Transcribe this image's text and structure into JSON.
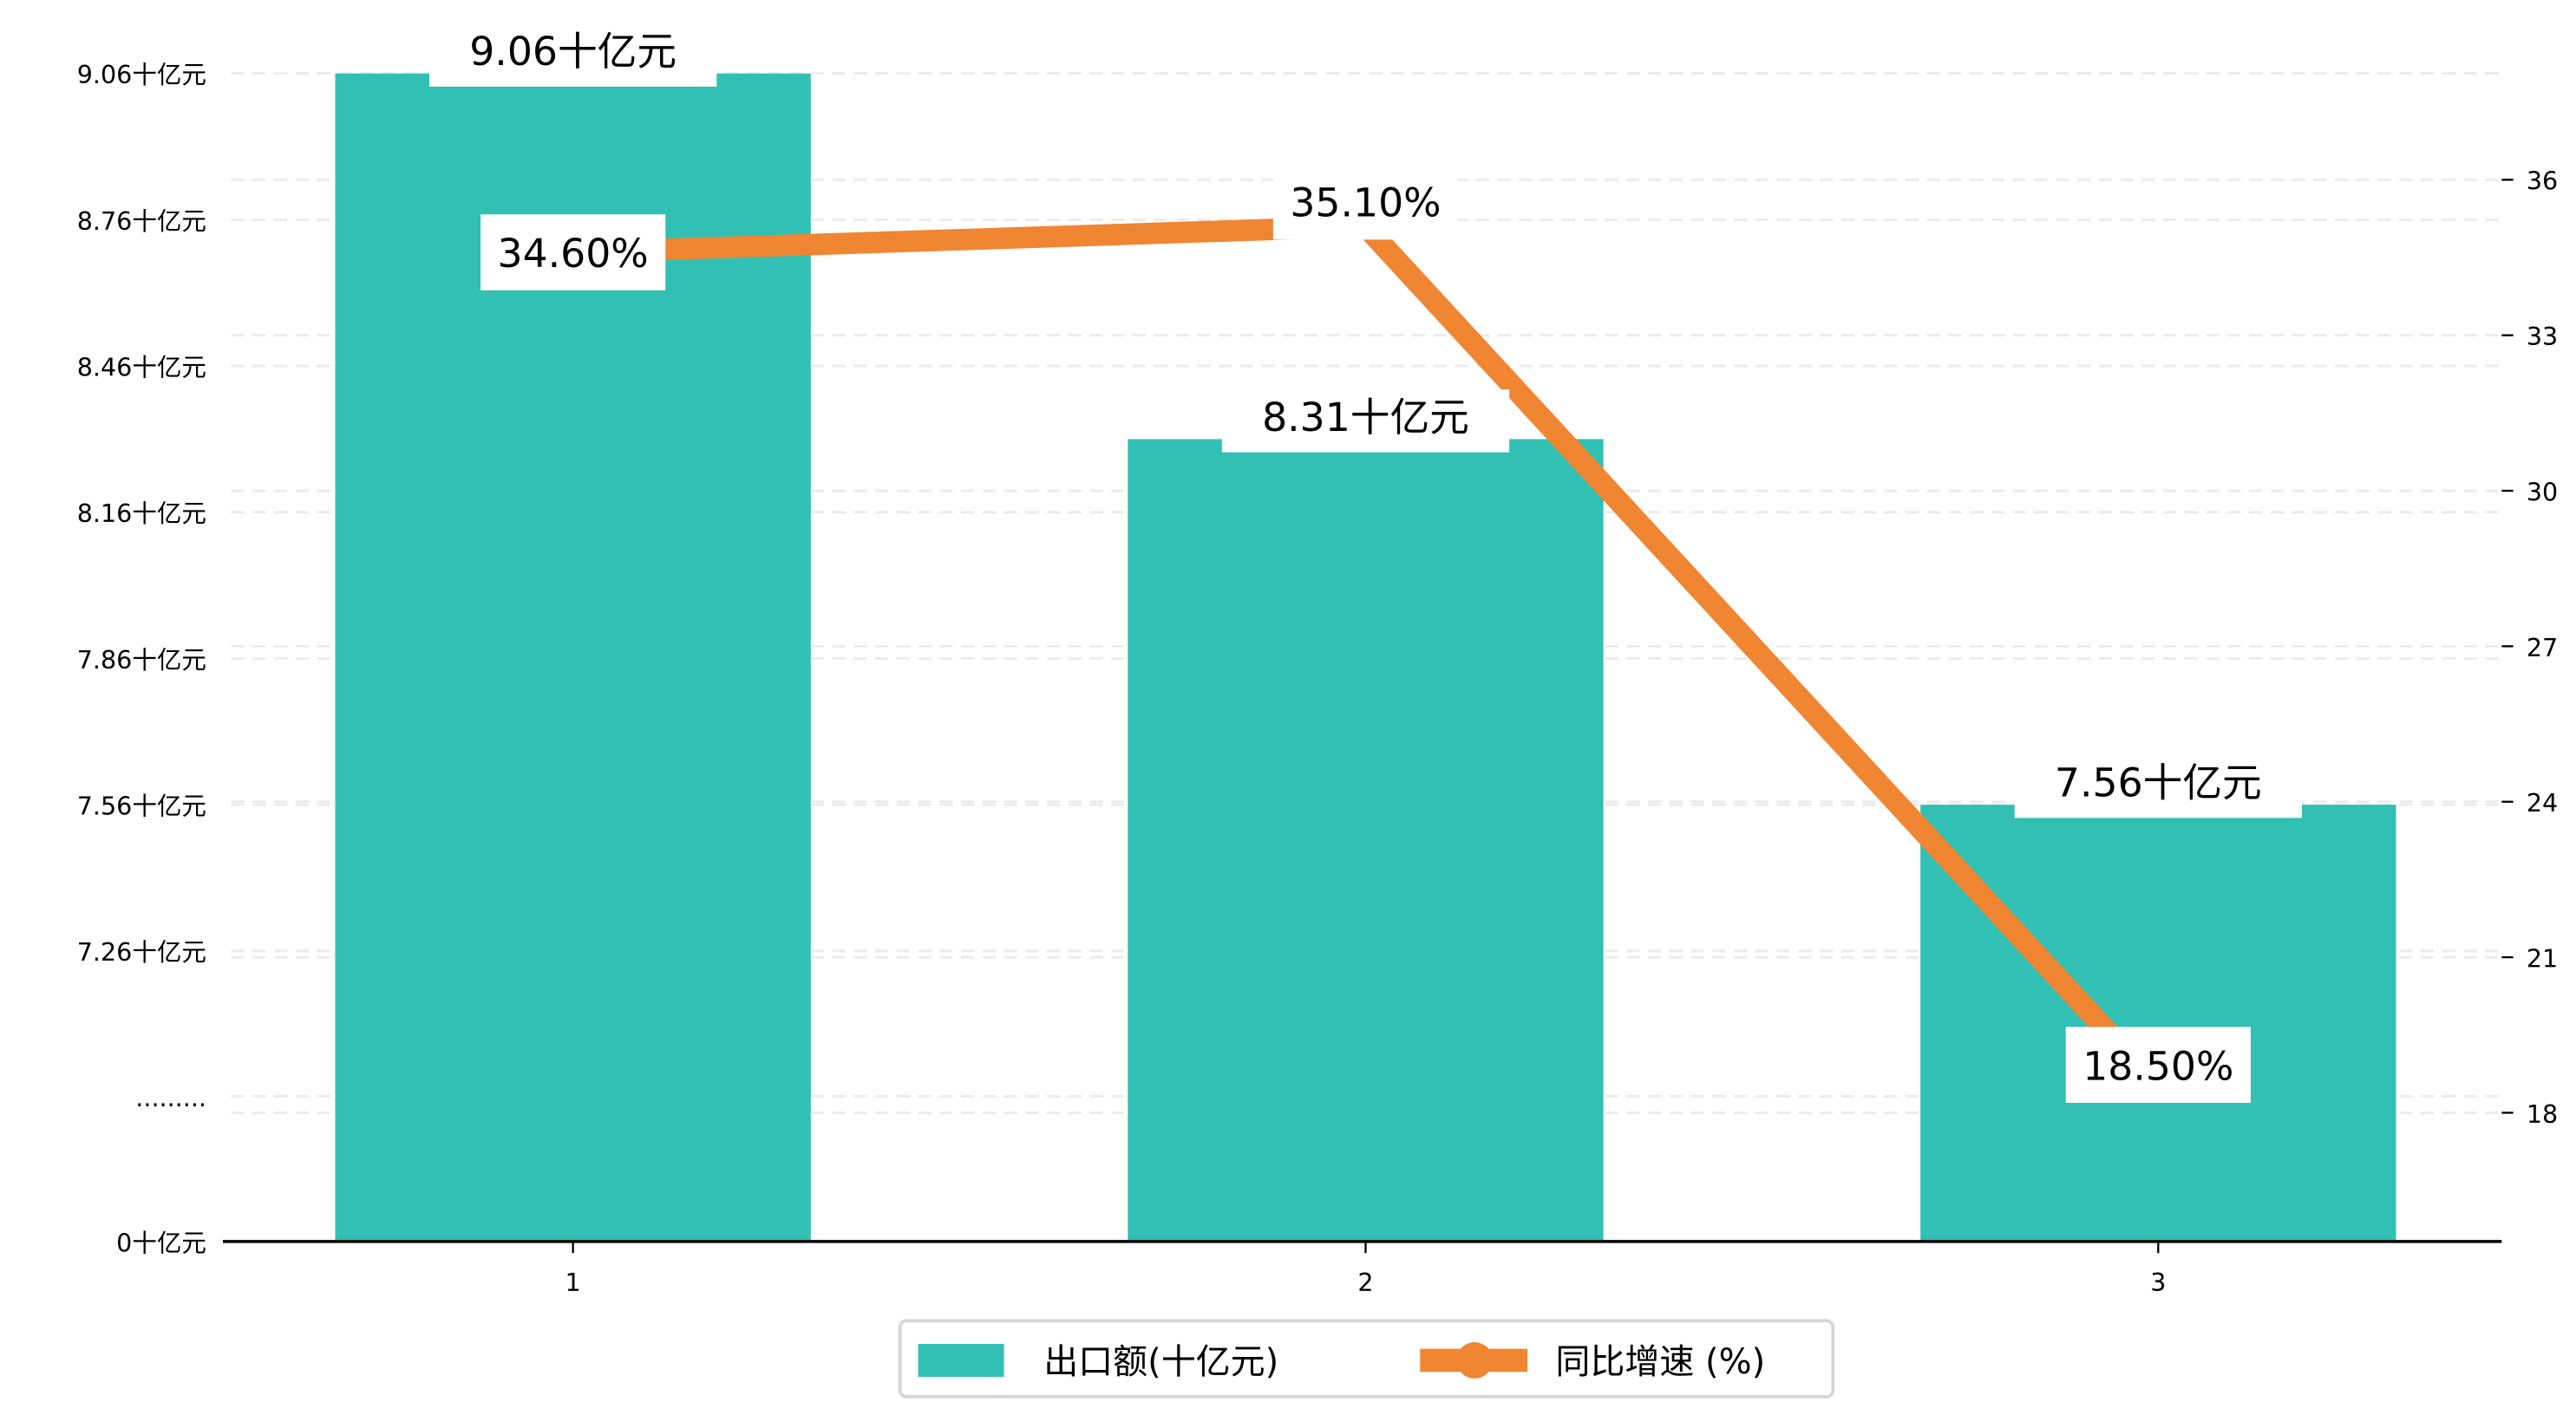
{
  "chart_data": {
    "type": "bar+line",
    "categories": [
      "1",
      "2",
      "3"
    ],
    "series": [
      {
        "name": "出口额(十亿元)",
        "type": "bar",
        "axis": "left",
        "values": [
          9.06,
          8.31,
          7.56
        ],
        "labels": [
          "9.06十亿元",
          "8.31十亿元",
          "7.56十亿元"
        ],
        "color": "#31c0b3"
      },
      {
        "name": "同比增速 (%)",
        "type": "line",
        "axis": "right",
        "values": [
          34.6,
          35.1,
          18.5
        ],
        "labels": [
          "34.60%",
          "35.10%",
          "18.50%"
        ],
        "color": "#f08532"
      }
    ],
    "left_axis": {
      "broken": true,
      "ticks": [
        0,
        7.26,
        7.56,
        7.86,
        8.16,
        8.46,
        8.76,
        9.06
      ],
      "tick_labels": [
        "0十亿元",
        ".........",
        "7.26十亿元",
        "7.56十亿元",
        "7.86十亿元",
        "8.16十亿元",
        "8.46十亿元",
        "8.76十亿元",
        "9.06十亿元"
      ]
    },
    "right_axis": {
      "ticks": [
        18,
        21,
        24,
        27,
        30,
        33,
        36
      ],
      "tick_labels": [
        "18",
        "21",
        "24",
        "27",
        "30",
        "33",
        "36"
      ]
    },
    "grid": true,
    "legend": {
      "placement": "bottom-center",
      "entries": [
        "出口额(十亿元)",
        "同比增速 (%)"
      ]
    }
  }
}
